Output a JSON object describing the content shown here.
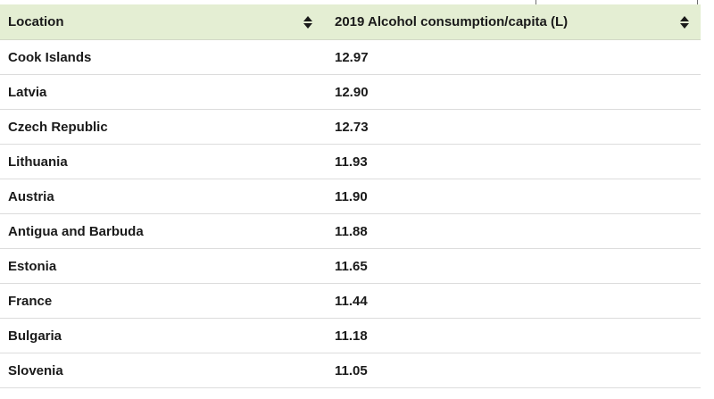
{
  "table": {
    "columns": [
      {
        "label": "Location"
      },
      {
        "label": "2019 Alcohol consumption/capita (L)"
      }
    ],
    "rows": [
      {
        "location": "Cook Islands",
        "value": "12.97"
      },
      {
        "location": "Latvia",
        "value": "12.90"
      },
      {
        "location": "Czech Republic",
        "value": "12.73"
      },
      {
        "location": "Lithuania",
        "value": "11.93"
      },
      {
        "location": "Austria",
        "value": "11.90"
      },
      {
        "location": "Antigua and Barbuda",
        "value": "11.88"
      },
      {
        "location": "Estonia",
        "value": "11.65"
      },
      {
        "location": "France",
        "value": "11.44"
      },
      {
        "location": "Bulgaria",
        "value": "11.18"
      },
      {
        "location": "Slovenia",
        "value": "11.05"
      }
    ]
  },
  "icons": {
    "sort": "sort-up-down-icon"
  },
  "colors": {
    "header_background": "#e4eed3",
    "row_divider": "#dcdcdc",
    "text": "#1a1a1a"
  }
}
